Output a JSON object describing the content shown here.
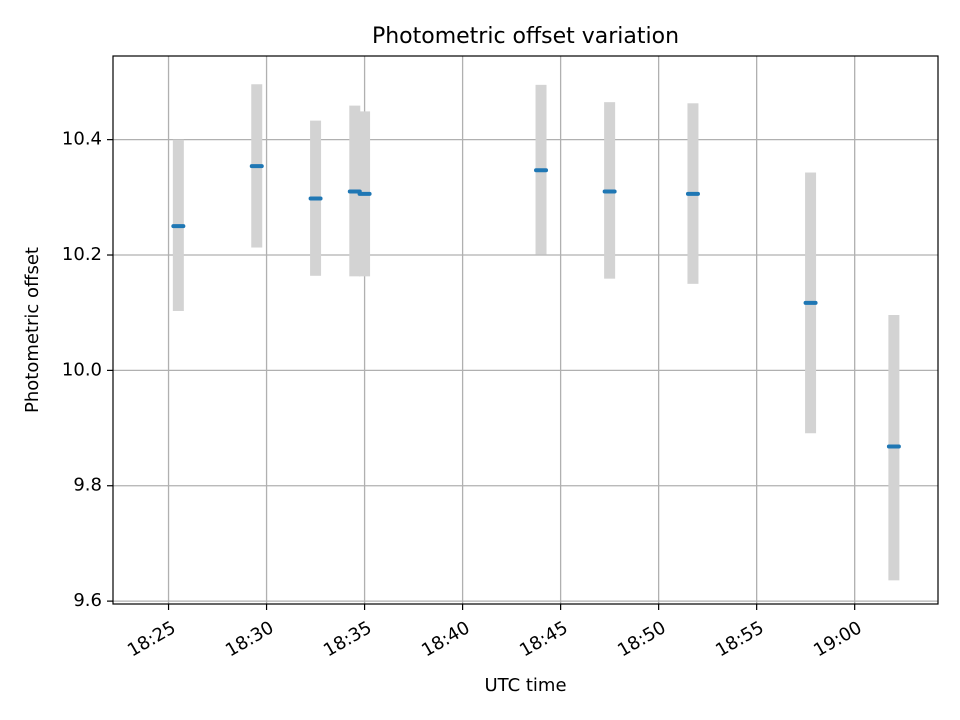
{
  "chart_data": {
    "type": "scatter",
    "title": "Photometric offset variation",
    "xlabel": "UTC time",
    "ylabel": "Photometric offset",
    "x_unit": "minutes after 18:00 UTC",
    "xlim": [
      "18:22:10",
      "19:04:15"
    ],
    "ylim": [
      9.595,
      10.545
    ],
    "x_ticks": [
      "18:25",
      "18:30",
      "18:35",
      "18:40",
      "18:45",
      "18:50",
      "18:55",
      "19:00"
    ],
    "y_ticks": [
      "9.6",
      "9.8",
      "10.0",
      "10.2",
      "10.4"
    ],
    "grid": true,
    "colors": {
      "marker": "#1f77b4",
      "error_band": "#d3d3d3",
      "grid": "#b0b0b0"
    },
    "series": [
      {
        "points": [
          {
            "x": "18:25:30",
            "y": 10.25,
            "ymin": 10.103,
            "ymax": 10.4
          },
          {
            "x": "18:29:30",
            "y": 10.354,
            "ymin": 10.213,
            "ymax": 10.496
          },
          {
            "x": "18:32:30",
            "y": 10.298,
            "ymin": 10.164,
            "ymax": 10.433
          },
          {
            "x": "18:34:30",
            "y": 10.31,
            "ymin": 10.163,
            "ymax": 10.459
          },
          {
            "x": "18:35:00",
            "y": 10.306,
            "ymin": 10.163,
            "ymax": 10.449
          },
          {
            "x": "18:44:00",
            "y": 10.347,
            "ymin": 10.201,
            "ymax": 10.495
          },
          {
            "x": "18:47:30",
            "y": 10.31,
            "ymin": 10.159,
            "ymax": 10.465
          },
          {
            "x": "18:51:45",
            "y": 10.306,
            "ymin": 10.15,
            "ymax": 10.463
          },
          {
            "x": "18:57:45",
            "y": 10.117,
            "ymin": 9.891,
            "ymax": 10.343
          },
          {
            "x": "19:02:00",
            "y": 9.868,
            "ymin": 9.636,
            "ymax": 10.096
          }
        ]
      }
    ]
  }
}
